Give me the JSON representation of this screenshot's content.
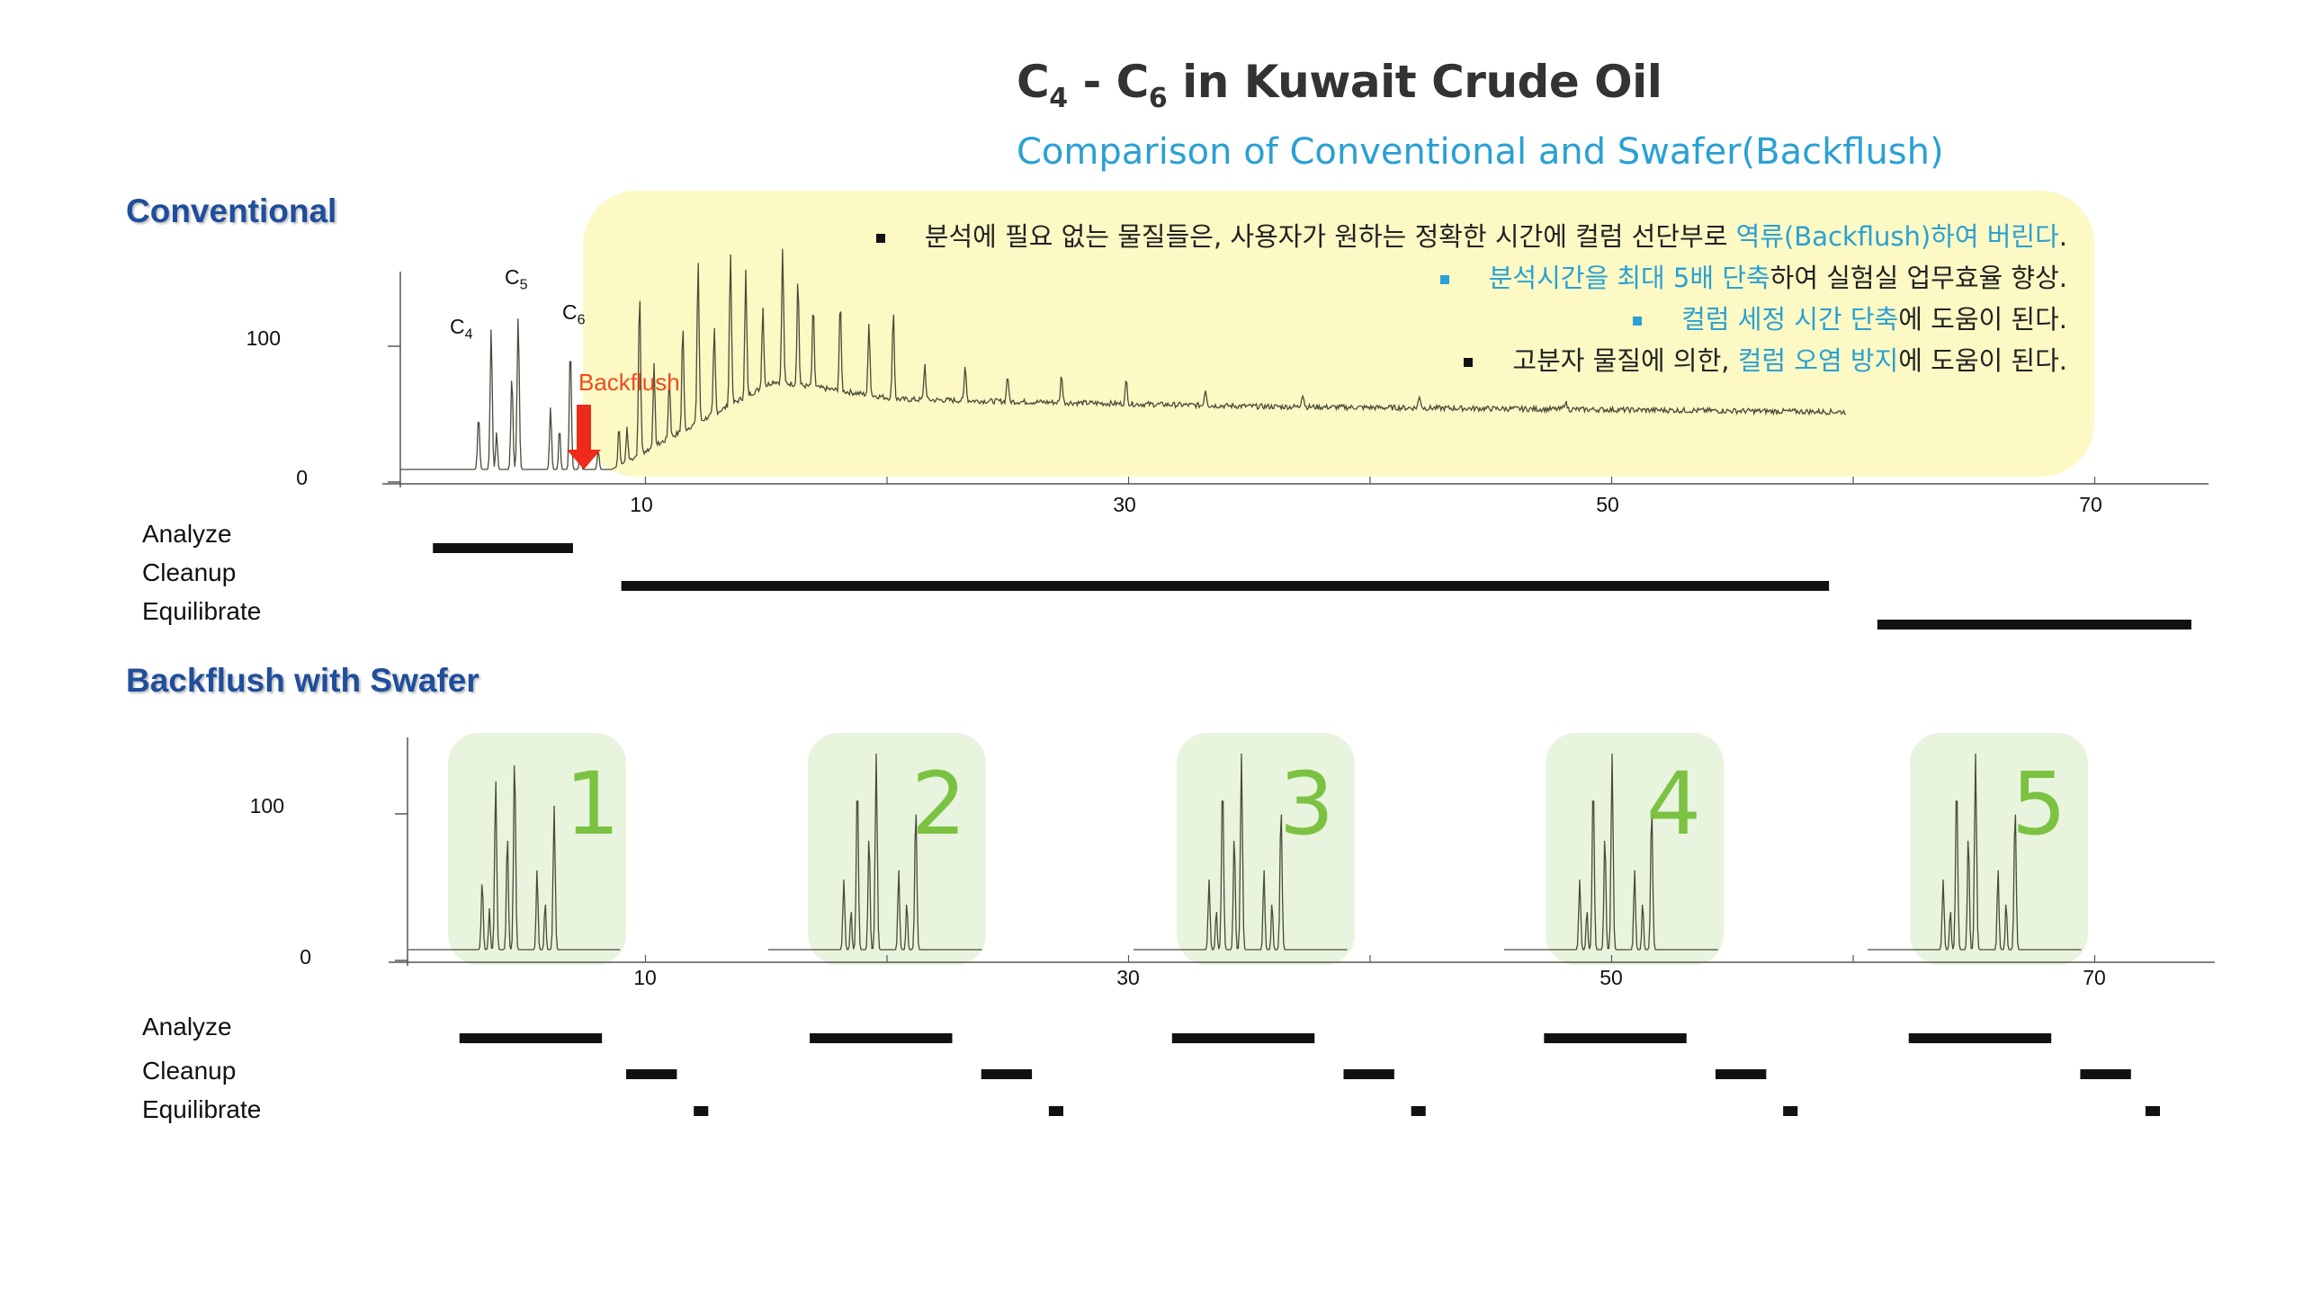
{
  "title": {
    "main": "C",
    "sub4": "4",
    "dash": " - C",
    "sub6": "6",
    "rest": " in Kuwait Crude Oil"
  },
  "subtitle": "Comparison of Conventional and Swafer(Backflush)",
  "sections": {
    "conventional": "Conventional",
    "swafer": "Backflush with Swafer"
  },
  "notes": [
    {
      "parts": [
        {
          "text": "분석에 필요 없는 물질들은, 사용자가 원하는 정확한 시간에 컬럼 선단부로 ",
          "hl": false
        },
        {
          "text": "역류(Backflush)하여 버린다",
          "hl": true
        },
        {
          "text": ".",
          "hl": false
        }
      ],
      "bullet": "black"
    },
    {
      "parts": [
        {
          "text": "분석시간을 최대 5배 단축",
          "hl": true
        },
        {
          "text": "하여 실험실 업무효율 향상.",
          "hl": false
        }
      ],
      "bullet": "blue"
    },
    {
      "parts": [
        {
          "text": "컬럼 세정 시간 단축",
          "hl": true
        },
        {
          "text": "에 도움이 된다.",
          "hl": false
        }
      ],
      "bullet": "blue"
    },
    {
      "parts": [
        {
          "text": "고분자 물질에 의한, ",
          "hl": false
        },
        {
          "text": "컬럼 오염 방지",
          "hl": true
        },
        {
          "text": "에 도움이 된다.",
          "hl": false
        }
      ],
      "bullet": "black"
    }
  ],
  "peak_labels": {
    "c4": {
      "main": "C",
      "sub": "4"
    },
    "c5": {
      "main": "C",
      "sub": "5"
    },
    "c6": {
      "main": "C",
      "sub": "6"
    }
  },
  "backflush_label": "Backflush",
  "row_labels": {
    "analyze": "Analyze",
    "cleanup": "Cleanup",
    "equilibrate": "Equilibrate"
  },
  "swafer_run_numbers": [
    "1",
    "2",
    "3",
    "4",
    "5"
  ],
  "colors": {
    "title": "#333333",
    "subtitle": "#2aa0d4",
    "section_heading": "#1f4e9c",
    "note_box": "#fcf9c2",
    "highlight": "#2aa0d4",
    "backflush": "#ee4a1d",
    "green_box": "#e8f4dd",
    "run_number": "#7cc242",
    "trace": "#4a4a3a"
  },
  "chart_data": [
    {
      "type": "line",
      "panel": "Conventional",
      "title": "Conventional",
      "yticks": [
        0,
        100
      ],
      "xticks": [
        10,
        30,
        50,
        70
      ],
      "xlim": [
        0,
        75
      ],
      "ylim": [
        0,
        160
      ],
      "annotations": [
        "C4",
        "C5",
        "C6",
        "Backflush"
      ],
      "timeline": {
        "Analyze": [
          [
            1.2,
            7.0
          ]
        ],
        "Cleanup": [
          [
            9.0,
            59.0
          ]
        ],
        "Equilibrate": [
          [
            61.0,
            74.0
          ]
        ]
      }
    },
    {
      "type": "line",
      "panel": "Backflush with Swafer",
      "title": "Backflush with Swafer",
      "yticks": [
        0,
        100
      ],
      "xticks": [
        10,
        30,
        50,
        70
      ],
      "xlim": [
        0,
        75
      ],
      "ylim": [
        0,
        160
      ],
      "runs": [
        "1",
        "2",
        "3",
        "4",
        "5"
      ],
      "timeline": {
        "Analyze": [
          [
            2.3,
            8.2
          ],
          [
            16.8,
            22.7
          ],
          [
            31.8,
            37.7
          ],
          [
            47.2,
            53.1
          ],
          [
            62.3,
            68.2
          ]
        ],
        "Cleanup": [
          [
            9.2,
            11.3
          ],
          [
            23.9,
            26.0
          ],
          [
            38.9,
            41.0
          ],
          [
            54.3,
            56.4
          ],
          [
            69.4,
            71.5
          ]
        ],
        "Equilibrate": [
          [
            12.0,
            12.6
          ],
          [
            26.7,
            27.3
          ],
          [
            41.7,
            42.3
          ],
          [
            57.1,
            57.7
          ],
          [
            72.1,
            72.7
          ]
        ]
      }
    }
  ]
}
